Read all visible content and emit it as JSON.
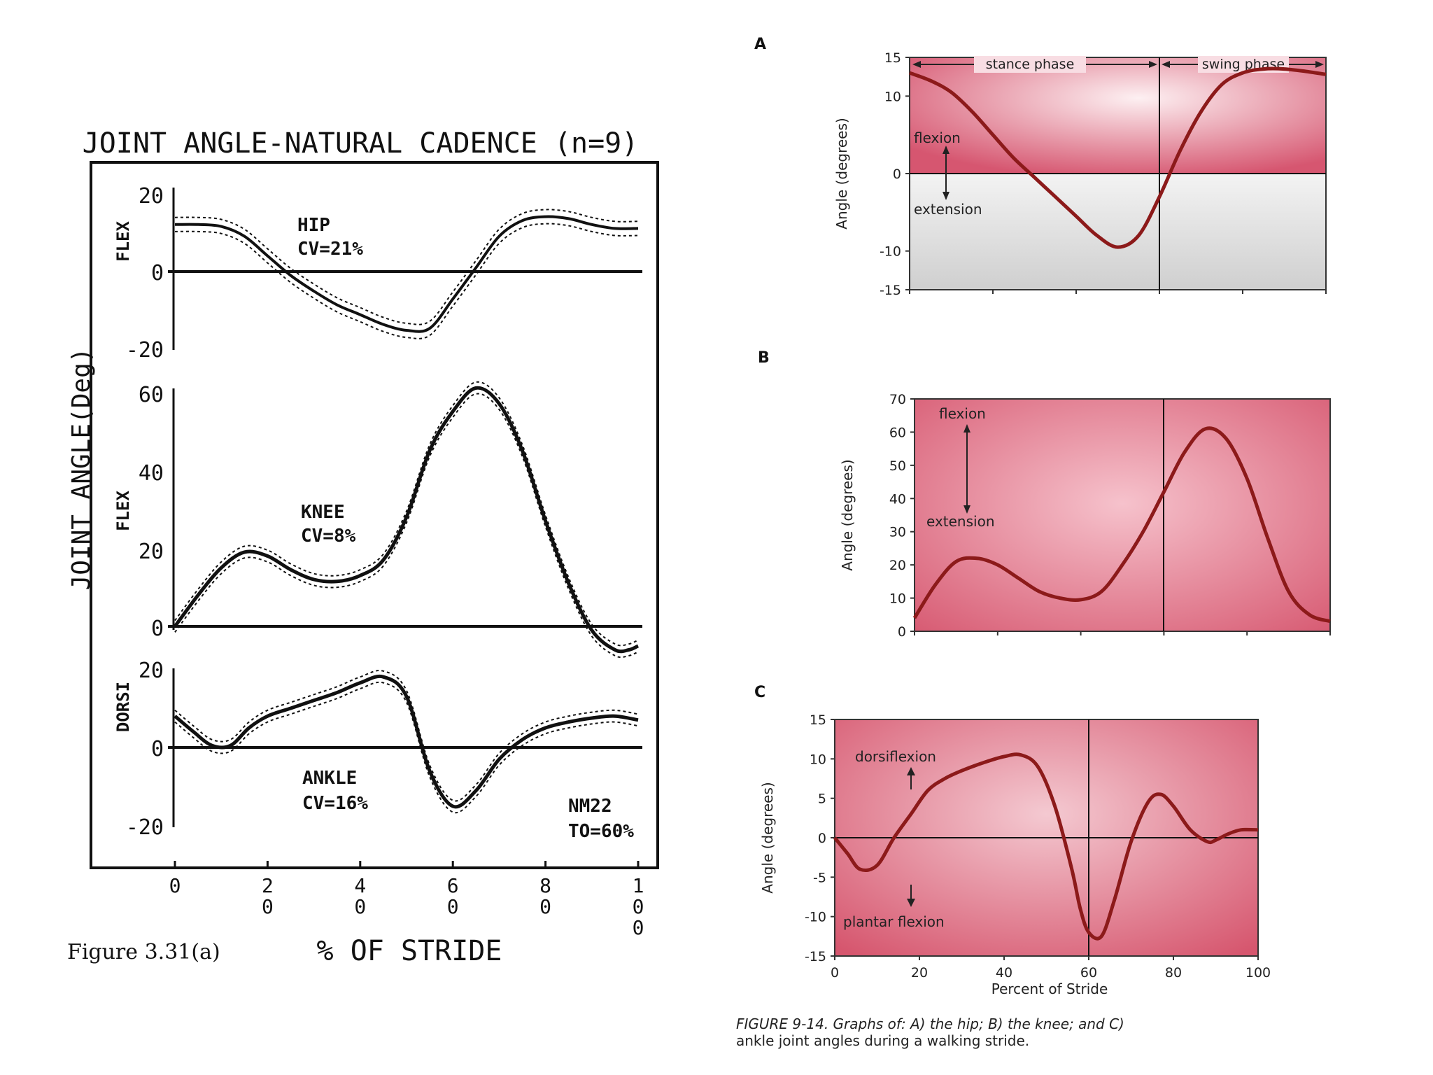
{
  "left_figure": {
    "title": "JOINT ANGLE-NATURAL CADENCE (n=9)",
    "ylabel": "JOINT ANGLE(Deg)",
    "xlabel": "% OF STRIDE",
    "caption": "Figure 3.31(a)",
    "x_ticks": [
      "0",
      "20",
      "40",
      "60",
      "80",
      "100"
    ]
  },
  "right_figure": {
    "caption_line1": "FIGURE 9-14. Graphs of: A) the hip; B) the knee; and C)",
    "caption_line2": "ankle joint angles during a walking stride.",
    "xlabel": "Percent of Stride",
    "x_ticks": [
      "0",
      "20",
      "40",
      "60",
      "80",
      "100"
    ]
  },
  "colors": {
    "ink": "#111111",
    "pink_dark": "#d4506a",
    "pink_light": "#fbe3e8",
    "curve_red": "#8c1a1a",
    "gray_band": "#d9d9d9"
  },
  "chart_data": [
    {
      "id": "left-hip",
      "type": "line",
      "ylabel": "FLEX",
      "label_line1": "HIP",
      "label_line2": "CV=21%",
      "ylim": [
        -20,
        20
      ],
      "y_ticks": [
        "20",
        "0",
        "-20"
      ],
      "x": [
        0,
        5,
        10,
        15,
        20,
        25,
        30,
        35,
        40,
        45,
        50,
        55,
        60,
        65,
        70,
        75,
        80,
        85,
        90,
        95,
        100
      ],
      "series": [
        {
          "values": [
            12,
            12,
            11.5,
            9,
            4,
            -1,
            -5,
            -8.5,
            -11,
            -13.5,
            -15,
            -14.5,
            -7,
            1,
            9,
            13,
            14,
            13.5,
            12,
            11,
            11
          ]
        }
      ],
      "band": 1.8
    },
    {
      "id": "left-knee",
      "type": "line",
      "ylabel": "FLEX",
      "label_line1": "KNEE",
      "label_line2": "CV=8%",
      "ylim": [
        0,
        60
      ],
      "y_ticks": [
        "60",
        "40",
        "20",
        "0"
      ],
      "x": [
        0,
        5,
        10,
        15,
        20,
        25,
        30,
        35,
        40,
        45,
        50,
        55,
        60,
        65,
        70,
        75,
        80,
        85,
        90,
        95,
        98,
        100
      ],
      "series": [
        {
          "values": [
            0,
            8,
            15,
            19,
            18,
            14.5,
            12,
            11.5,
            13,
            17,
            28,
            45,
            55,
            61,
            57,
            45,
            27,
            11,
            -1,
            -6,
            -6,
            -5
          ]
        }
      ],
      "band": 1.5
    },
    {
      "id": "left-ankle",
      "type": "line",
      "ylabel": "DORSI",
      "label_line1": "ANKLE",
      "label_line2": "CV=16%",
      "ylim": [
        -20,
        20
      ],
      "y_ticks": [
        "20",
        "0",
        "-20"
      ],
      "annotation_line1": "NM22",
      "annotation_line2": "TO=60%",
      "x": [
        0,
        4,
        8,
        12,
        16,
        20,
        25,
        30,
        35,
        40,
        45,
        50,
        55,
        60,
        65,
        70,
        75,
        80,
        85,
        90,
        95,
        100
      ],
      "series": [
        {
          "values": [
            8,
            4,
            0.5,
            0.5,
            5,
            8,
            10,
            12,
            14,
            16.5,
            18,
            13,
            -6,
            -15,
            -11,
            -3,
            2,
            5,
            6.5,
            7.5,
            8,
            7
          ]
        }
      ],
      "band": 1.5
    },
    {
      "id": "right-hip",
      "type": "line",
      "panel_letter": "A",
      "ylabel": "Angle (degrees)",
      "ylim": [
        -15,
        15
      ],
      "y_ticks": [
        "15",
        "10",
        "0",
        "-10",
        "-15"
      ],
      "top_left_label": "stance phase",
      "top_right_label": "swing phase",
      "upper_note": "flexion",
      "lower_note": "extension",
      "divider_x": 60,
      "x": [
        0,
        5,
        10,
        15,
        20,
        25,
        30,
        35,
        40,
        45,
        50,
        55,
        60,
        65,
        70,
        75,
        80,
        85,
        90,
        95,
        100
      ],
      "series": [
        {
          "values": [
            13,
            12,
            10.5,
            8,
            5,
            2,
            -0.5,
            -3,
            -5.5,
            -8,
            -9.5,
            -8,
            -3,
            3,
            8,
            11.5,
            13,
            13.5,
            13.5,
            13.2,
            12.8
          ]
        }
      ]
    },
    {
      "id": "right-knee",
      "type": "line",
      "panel_letter": "B",
      "ylabel": "Angle (degrees)",
      "ylim": [
        0,
        70
      ],
      "y_ticks": [
        "70",
        "60",
        "50",
        "40",
        "30",
        "20",
        "10",
        "0"
      ],
      "upper_note": "flexion",
      "lower_note": "extension",
      "divider_x": 60,
      "x": [
        0,
        5,
        10,
        15,
        20,
        25,
        30,
        35,
        40,
        45,
        50,
        55,
        60,
        65,
        70,
        75,
        80,
        85,
        90,
        95,
        100
      ],
      "series": [
        {
          "values": [
            4,
            14,
            21,
            22,
            20,
            16,
            12,
            10,
            9.5,
            12,
            20,
            30,
            42,
            54,
            61,
            58,
            46,
            28,
            12,
            5,
            3
          ]
        }
      ]
    },
    {
      "id": "right-ankle",
      "type": "line",
      "panel_letter": "C",
      "ylabel": "Angle (degrees)",
      "ylim": [
        -15,
        15
      ],
      "y_ticks": [
        "15",
        "10",
        "5",
        "0",
        "-5",
        "-10",
        "-15"
      ],
      "upper_note": "dorsiflexion",
      "lower_note": "plantar flexion",
      "divider_x": 60,
      "x_ticks": [
        "0",
        "20",
        "40",
        "60",
        "80",
        "100"
      ],
      "x": [
        0,
        3,
        6,
        10,
        14,
        18,
        22,
        26,
        30,
        35,
        40,
        44,
        48,
        52,
        56,
        58,
        60,
        63,
        66,
        70,
        74,
        77,
        80,
        84,
        88,
        90,
        93,
        96,
        100
      ],
      "series": [
        {
          "values": [
            0,
            -2,
            -4,
            -3.5,
            0,
            3,
            6,
            7.5,
            8.5,
            9.5,
            10.3,
            10.5,
            9,
            4,
            -4,
            -9,
            -12,
            -12.5,
            -8,
            -0.5,
            4.5,
            5.5,
            4,
            1,
            -0.5,
            -0.3,
            0.5,
            1,
            1
          ]
        }
      ]
    }
  ]
}
